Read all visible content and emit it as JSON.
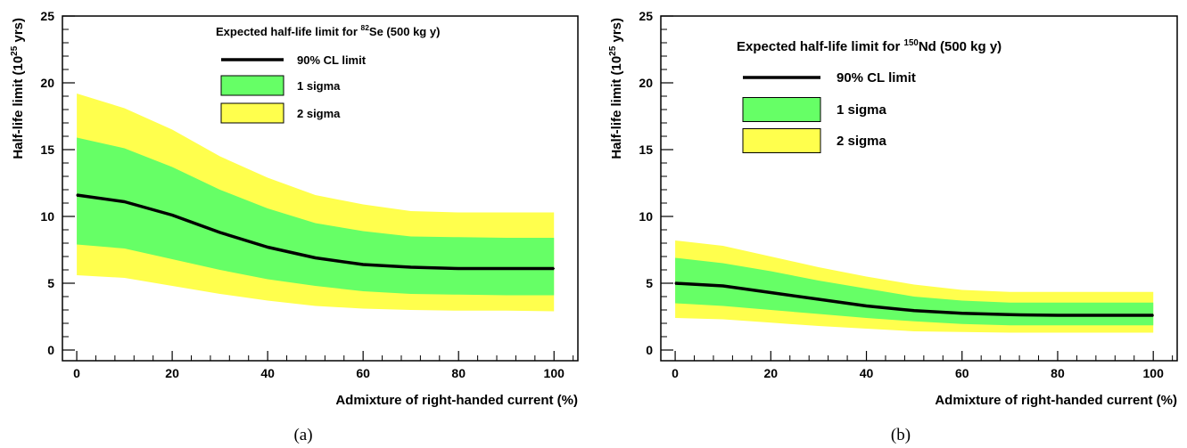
{
  "figure": {
    "panels": [
      {
        "caption": "(a)",
        "legend": {
          "title_prefix": "Expected half-life limit for ",
          "title_superscript": "82",
          "title_suffix": "Se (500 kg y)",
          "entries": [
            "90% CL limit",
            "1 sigma",
            "2 sigma"
          ]
        }
      },
      {
        "caption": "(b)",
        "legend": {
          "title_prefix": "Expected half-life limit for ",
          "title_superscript": "150",
          "title_suffix": "Nd (500 kg y)",
          "entries": [
            "90% CL limit",
            "1 sigma",
            "2 sigma"
          ]
        }
      }
    ]
  },
  "colors": {
    "median_line": "#000000",
    "one_sigma_band": "#66ff66",
    "two_sigma_band": "#ffff4d",
    "axis": "#000000"
  },
  "chart_data": [
    {
      "type": "area",
      "xlabel": "Admixture of right-handed current (%)",
      "ylabel_prefix": "Half-life limit (10",
      "ylabel_superscript": "25",
      "ylabel_suffix": " yrs)",
      "xlim": [
        -3,
        105
      ],
      "ylim": [
        -0.8,
        25
      ],
      "xticks": [
        0,
        20,
        40,
        60,
        80,
        100
      ],
      "yticks": [
        0,
        5,
        10,
        15,
        20,
        25
      ],
      "legend_position": "top",
      "grid": false,
      "x": [
        0,
        10,
        20,
        30,
        40,
        50,
        60,
        70,
        80,
        90,
        100
      ],
      "series": [
        {
          "name": "90% CL limit",
          "values": [
            11.6,
            11.1,
            10.1,
            8.8,
            7.7,
            6.9,
            6.4,
            6.2,
            6.1,
            6.1,
            6.1
          ]
        },
        {
          "name": "1 sigma",
          "lower": [
            7.9,
            7.6,
            6.8,
            6.0,
            5.3,
            4.8,
            4.4,
            4.2,
            4.15,
            4.1,
            4.1
          ],
          "upper": [
            15.9,
            15.1,
            13.7,
            12.0,
            10.6,
            9.5,
            8.9,
            8.5,
            8.45,
            8.4,
            8.4
          ]
        },
        {
          "name": "2 sigma",
          "lower": [
            5.6,
            5.4,
            4.8,
            4.2,
            3.7,
            3.3,
            3.1,
            3.0,
            2.95,
            2.95,
            2.9
          ],
          "upper": [
            19.2,
            18.1,
            16.5,
            14.5,
            12.9,
            11.6,
            10.9,
            10.4,
            10.3,
            10.3,
            10.3
          ]
        }
      ]
    },
    {
      "type": "area",
      "xlabel": "Admixture of right-handed current (%)",
      "ylabel_prefix": "Half-life limit (10",
      "ylabel_superscript": "25",
      "ylabel_suffix": " yrs)",
      "xlim": [
        -3,
        105
      ],
      "ylim": [
        -0.8,
        25
      ],
      "xticks": [
        0,
        20,
        40,
        60,
        80,
        100
      ],
      "yticks": [
        0,
        5,
        10,
        15,
        20,
        25
      ],
      "legend_position": "top",
      "grid": false,
      "x": [
        0,
        10,
        20,
        30,
        40,
        50,
        60,
        70,
        80,
        90,
        100
      ],
      "series": [
        {
          "name": "90% CL limit",
          "values": [
            5.0,
            4.8,
            4.3,
            3.8,
            3.3,
            2.95,
            2.75,
            2.65,
            2.6,
            2.6,
            2.6
          ]
        },
        {
          "name": "1 sigma",
          "lower": [
            3.5,
            3.3,
            3.0,
            2.7,
            2.4,
            2.15,
            1.95,
            1.85,
            1.85,
            1.85,
            1.85
          ],
          "upper": [
            6.9,
            6.5,
            5.9,
            5.2,
            4.6,
            4.0,
            3.7,
            3.55,
            3.55,
            3.55,
            3.55
          ]
        },
        {
          "name": "2 sigma",
          "lower": [
            2.4,
            2.3,
            2.05,
            1.8,
            1.6,
            1.4,
            1.35,
            1.3,
            1.3,
            1.3,
            1.3
          ],
          "upper": [
            8.2,
            7.8,
            7.0,
            6.2,
            5.5,
            4.9,
            4.5,
            4.35,
            4.35,
            4.35,
            4.35
          ]
        }
      ]
    }
  ]
}
